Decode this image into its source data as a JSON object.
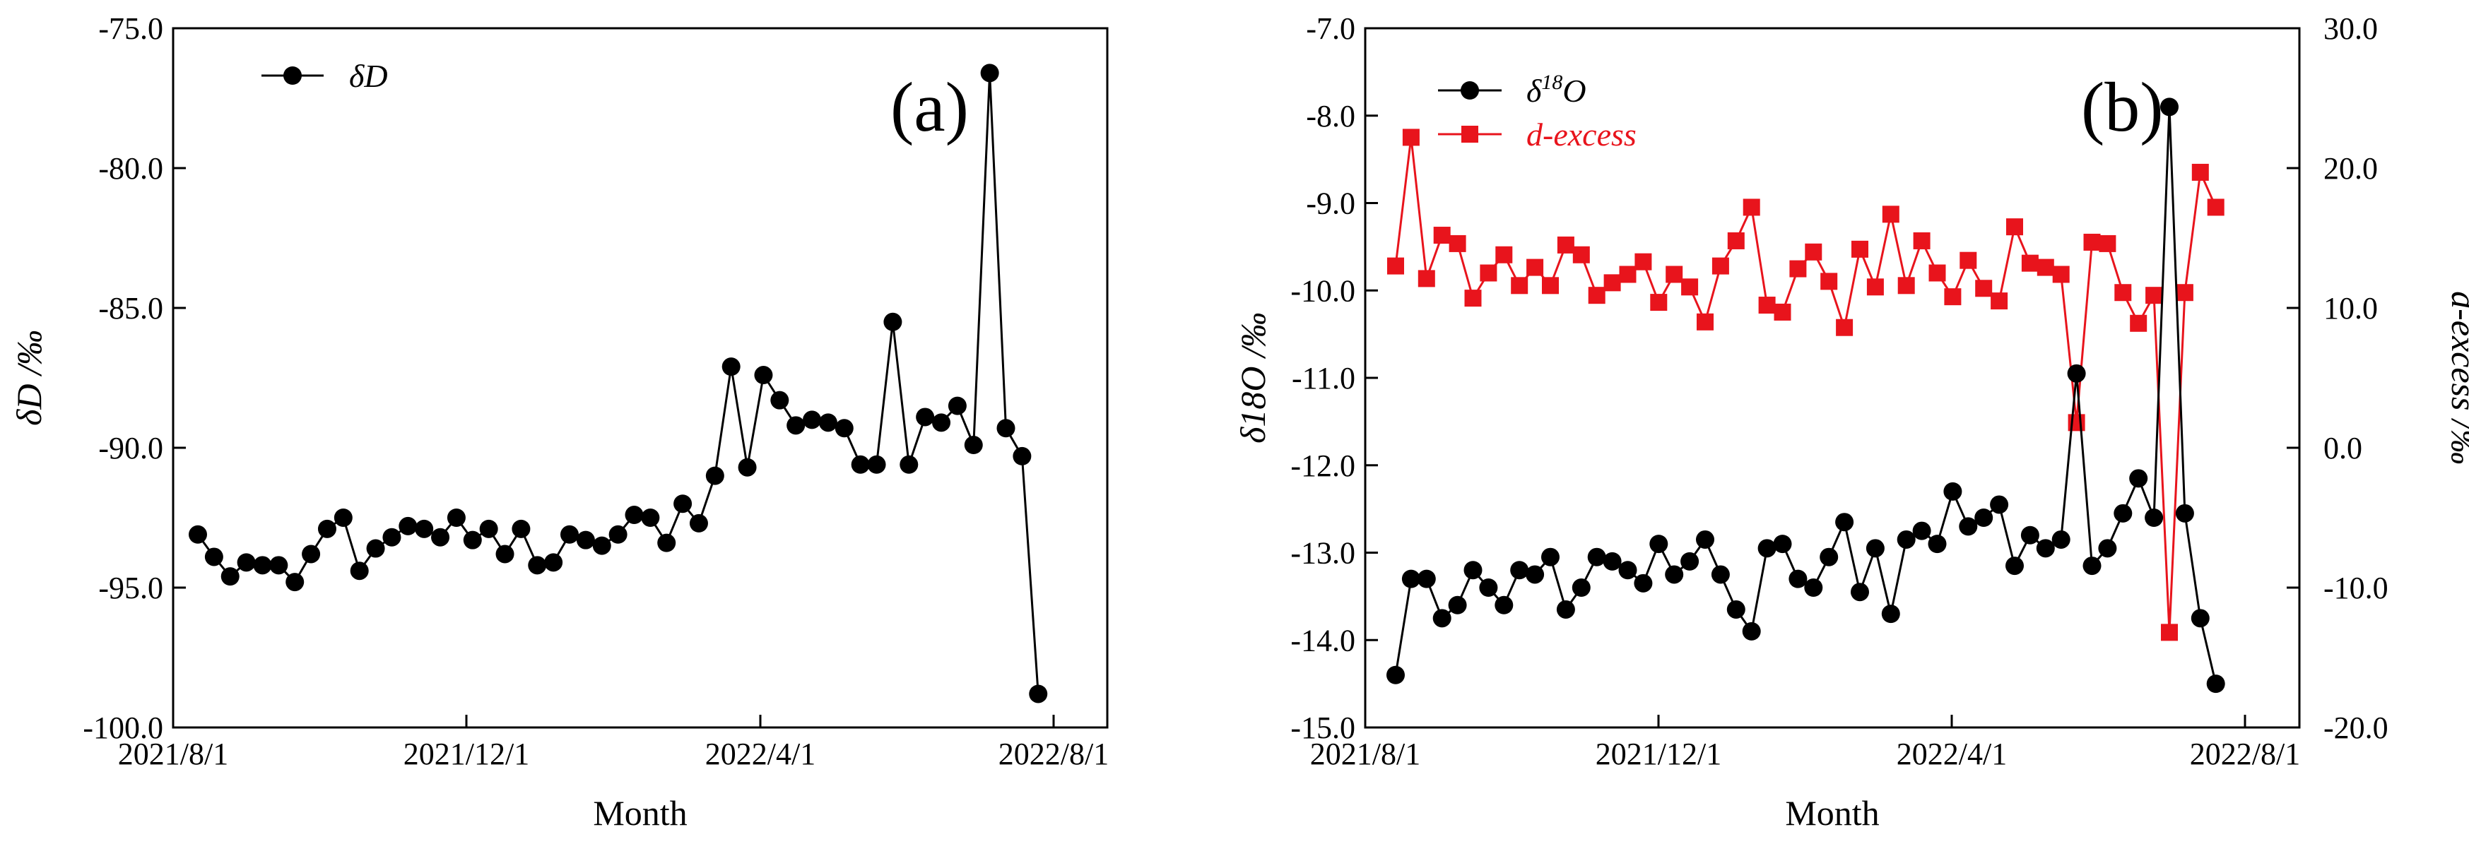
{
  "chart_data": [
    {
      "type": "line",
      "panel": "(a)",
      "xlabel": "Month",
      "x_tick_labels": [
        "2021/8/1",
        "2021/12/1",
        "2022/4/1",
        "2022/8/1"
      ],
      "ylabel": "δD /‰",
      "ylim": [
        -100.0,
        -75.0
      ],
      "y_ticks": [
        -100.0,
        -95.0,
        -90.0,
        -85.0,
        -80.0,
        -75.0
      ],
      "y_tick_labels": [
        "-100.0",
        "-95.0",
        "-90.0",
        "-85.0",
        "-80.0",
        "-75.0"
      ],
      "legend": "top-left",
      "series": [
        {
          "name": "δD",
          "legend_label": "δD",
          "color": "#000000",
          "marker": "circle",
          "values": [
            -93.1,
            -93.9,
            -94.6,
            -94.1,
            -94.2,
            -94.2,
            -94.8,
            -93.8,
            -92.9,
            -92.5,
            -94.4,
            -93.6,
            -93.2,
            -92.8,
            -92.9,
            -93.2,
            -92.5,
            -93.3,
            -92.9,
            -93.8,
            -92.9,
            -94.2,
            -94.1,
            -93.1,
            -93.3,
            -93.5,
            -93.1,
            -92.4,
            -92.5,
            -93.4,
            -92.0,
            -92.7,
            -91.0,
            -87.1,
            -90.7,
            -87.4,
            -88.3,
            -89.2,
            -89.0,
            -89.1,
            -89.3,
            -90.6,
            -90.6,
            -85.5,
            -90.6,
            -88.9,
            -89.1,
            -88.5,
            -89.9,
            -76.6,
            -89.3,
            -90.3,
            -98.8
          ]
        }
      ]
    },
    {
      "type": "line",
      "panel": "(b)",
      "xlabel": "Month",
      "x_tick_labels": [
        "2021/8/1",
        "2021/12/1",
        "2022/4/1",
        "2022/8/1"
      ],
      "ylabel": "δ18O /‰",
      "ylim": [
        -15.0,
        -7.0
      ],
      "y_ticks": [
        -15.0,
        -14.0,
        -13.0,
        -12.0,
        -11.0,
        -10.0,
        -9.0,
        -8.0,
        -7.0
      ],
      "y_tick_labels": [
        "-15.0",
        "-14.0",
        "-13.0",
        "-12.0",
        "-11.0",
        "-10.0",
        "-9.0",
        "-8.0",
        "-7.0"
      ],
      "y2label": "d-excess /‰",
      "y2lim": [
        -20.0,
        30.0
      ],
      "y2_ticks": [
        -20.0,
        -10.0,
        0.0,
        10.0,
        20.0,
        30.0
      ],
      "y2_tick_labels": [
        "-20.0",
        "-10.0",
        "0.0",
        "10.0",
        "20.0",
        "30.0"
      ],
      "legend": "top-left",
      "series": [
        {
          "name": "δ18O",
          "legend_base": "δ",
          "legend_sup": "18",
          "legend_rest": "O",
          "color": "#000000",
          "marker": "circle",
          "axis": "left",
          "values": [
            -14.4,
            -13.3,
            -13.3,
            -13.75,
            -13.6,
            -13.2,
            -13.4,
            -13.6,
            -13.2,
            -13.25,
            -13.05,
            -13.65,
            -13.4,
            -13.05,
            -13.1,
            -13.2,
            -13.35,
            -12.9,
            -13.25,
            -13.1,
            -12.85,
            -13.25,
            -13.65,
            -13.9,
            -12.95,
            -12.9,
            -13.3,
            -13.4,
            -13.05,
            -12.65,
            -13.45,
            -12.95,
            -13.7,
            -12.85,
            -12.75,
            -12.9,
            -12.3,
            -12.7,
            -12.6,
            -12.45,
            -13.15,
            -12.8,
            -12.95,
            -12.85,
            -10.95,
            -13.15,
            -12.95,
            -12.55,
            -12.15,
            -12.6,
            -7.9,
            -12.55,
            -13.75,
            -14.5
          ]
        },
        {
          "name": "d-excess",
          "legend_label": "d-excess",
          "color": "#e8141c",
          "marker": "square",
          "axis": "right",
          "values": [
            13.0,
            22.2,
            12.1,
            15.2,
            14.6,
            10.7,
            12.5,
            13.8,
            11.6,
            12.9,
            11.6,
            14.5,
            13.8,
            10.9,
            11.8,
            12.4,
            13.3,
            10.4,
            12.4,
            11.5,
            9.0,
            13.0,
            14.8,
            17.2,
            10.2,
            9.7,
            12.8,
            14.0,
            11.9,
            8.6,
            14.2,
            11.5,
            16.7,
            11.6,
            14.8,
            12.5,
            10.8,
            13.4,
            11.4,
            10.5,
            15.8,
            13.2,
            12.9,
            12.4,
            1.8,
            14.7,
            14.6,
            11.1,
            8.9,
            10.9,
            -13.2,
            11.1,
            19.7,
            17.2
          ]
        }
      ]
    }
  ]
}
